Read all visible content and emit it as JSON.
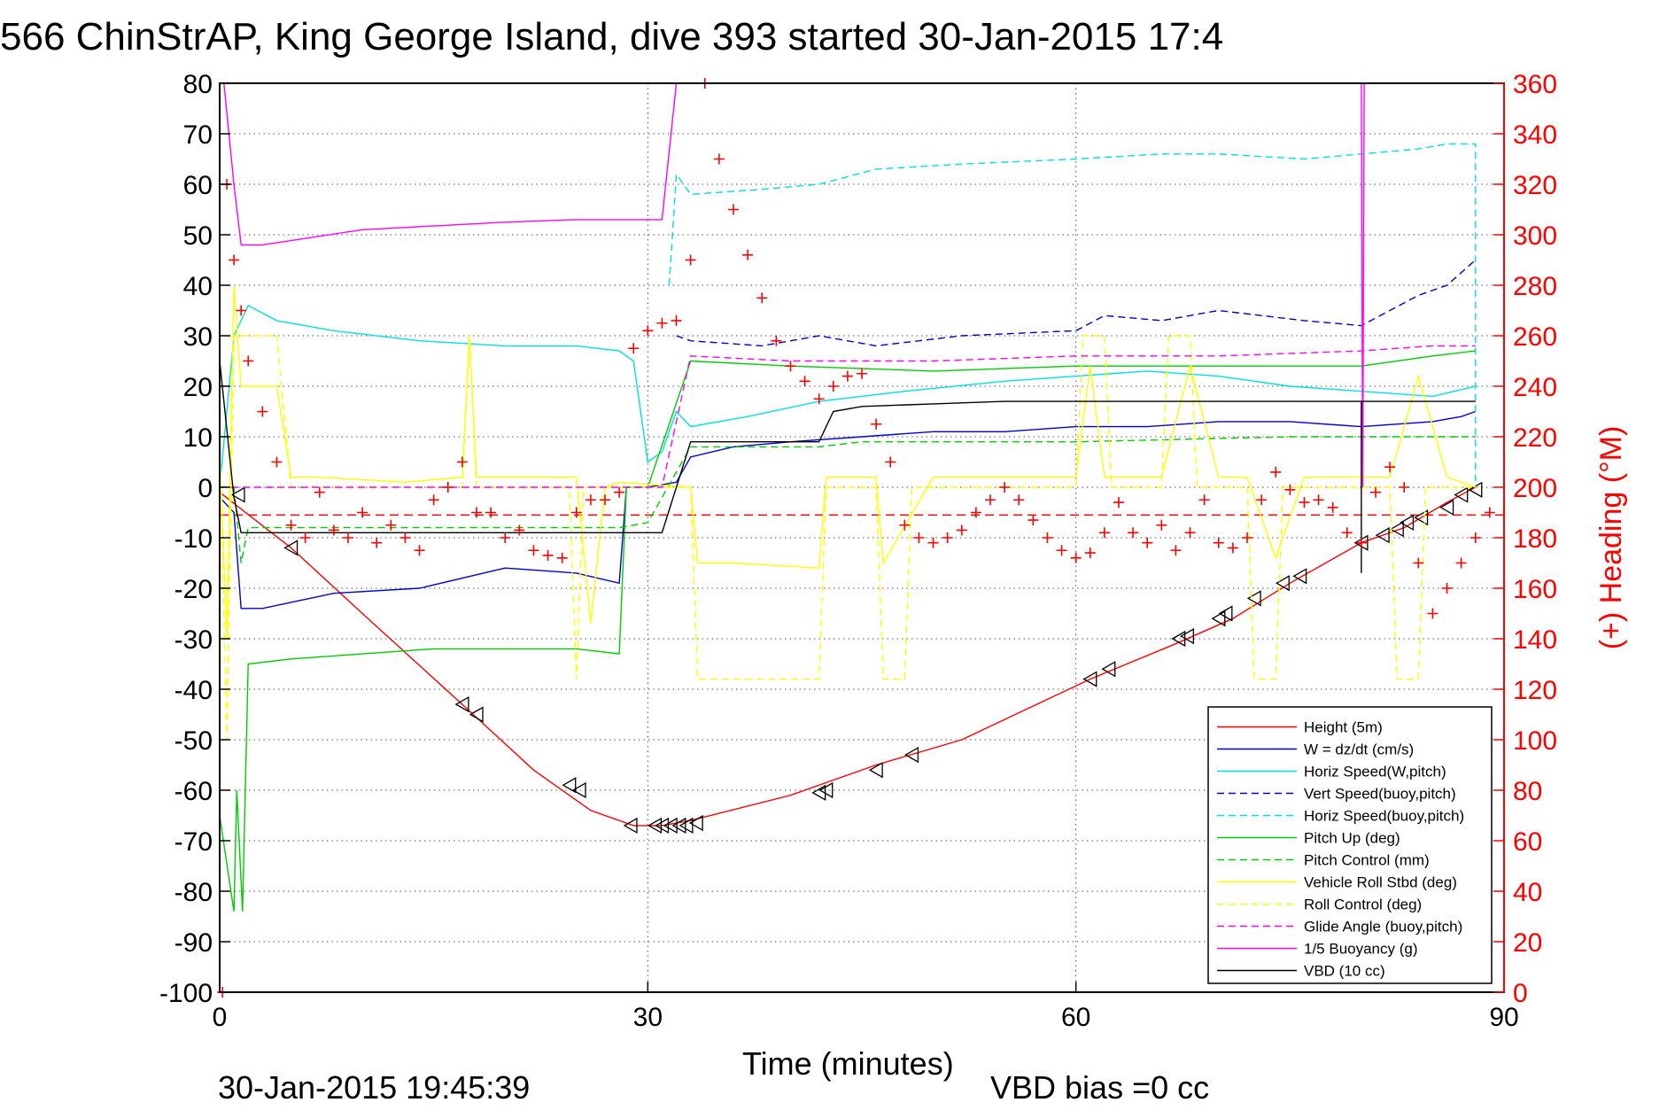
{
  "chart_data": {
    "type": "line",
    "title": "566 ChinStrAP, King George Island, dive 393 started 30-Jan-2015 17:4",
    "xlabel": "Time (minutes)",
    "ylabel_right": "(+) Heading (°M)",
    "footer_date": "30-Jan-2015 19:45:39",
    "footer_note": "VBD bias =0 cc",
    "xlim": [
      0,
      90
    ],
    "ylim": [
      -100,
      80
    ],
    "ylim_right": [
      0,
      360
    ],
    "x_ticks": [
      "0",
      "30",
      "60",
      "90"
    ],
    "y_ticks_left": [
      "80",
      "70",
      "60",
      "50",
      "40",
      "30",
      "20",
      "10",
      "0",
      "-10",
      "-20",
      "-30",
      "-40",
      "-50",
      "-60",
      "-70",
      "-80",
      "-90",
      "-100"
    ],
    "y_ticks_right": [
      "360",
      "340",
      "320",
      "300",
      "280",
      "260",
      "240",
      "220",
      "200",
      "180",
      "160",
      "140",
      "120",
      "100",
      "80",
      "60",
      "40",
      "20",
      "0"
    ],
    "grid": true,
    "legend_position": "bottom-right",
    "legend": [
      {
        "label": "Height (5m)",
        "color": "#ff0000",
        "style": "solid"
      },
      {
        "label": "W = dz/dt (cm/s)",
        "color": "#0000cc",
        "style": "solid"
      },
      {
        "label": "Horiz Speed(W,pitch)",
        "color": "#00e0e0",
        "style": "solid"
      },
      {
        "label": "Vert Speed(buoy,pitch)",
        "color": "#0000cc",
        "style": "dashed"
      },
      {
        "label": "Horiz Speed(buoy,pitch)",
        "color": "#00e0e0",
        "style": "dashed"
      },
      {
        "label": "Pitch Up (deg)",
        "color": "#00cc00",
        "style": "solid"
      },
      {
        "label": "Pitch Control (mm)",
        "color": "#00cc00",
        "style": "dashed"
      },
      {
        "label": "Vehicle Roll Stbd (deg)",
        "color": "#ffff00",
        "style": "solid"
      },
      {
        "label": "Roll Control (deg)",
        "color": "#ffff00",
        "style": "dashed"
      },
      {
        "label": "Glide Angle (buoy,pitch)",
        "color": "#ff00ff",
        "style": "dashed"
      },
      {
        "label": "1/5 Buoyancy (g)",
        "color": "#ff00ff",
        "style": "solid"
      },
      {
        "label": "VBD (10 cc)",
        "color": "#000000",
        "style": "solid"
      }
    ],
    "series": [
      {
        "name": "Height (5m)",
        "color": "#ff0000",
        "style": "solid",
        "axis": "left",
        "x": [
          0,
          5,
          10,
          17,
          22,
          26,
          29,
          31,
          33,
          40,
          46,
          52,
          55,
          61,
          67,
          71,
          75,
          80,
          83,
          86,
          88
        ],
        "y": [
          -1,
          -12,
          -25,
          -43,
          -56,
          -64,
          -67,
          -67,
          -66,
          -61,
          -55,
          -50,
          -46,
          -38,
          -31,
          -26,
          -19,
          -11,
          -8,
          -3,
          0
        ]
      },
      {
        "name": "Depth-marker triangles",
        "color": "#000000",
        "style": "marker",
        "axis": "left",
        "x": [
          1.3,
          5,
          17,
          18,
          24.5,
          25.2,
          28.8,
          30.5,
          31,
          31.6,
          32.2,
          32.7,
          33.4,
          42,
          42.5,
          46,
          48.5,
          61,
          62.3,
          67.2,
          67.8,
          70,
          70.5,
          72.5,
          74.5,
          75.7,
          80,
          81.5,
          82.5,
          83.2,
          84.2,
          86,
          87,
          88
        ],
        "y": [
          -1.5,
          -12,
          -43,
          -45,
          -59,
          -60,
          -67,
          -67,
          -67,
          -67,
          -67,
          -67,
          -66.5,
          -60.5,
          -60,
          -56,
          -53,
          -38,
          -36,
          -30,
          -29.5,
          -26,
          -25,
          -22,
          -19,
          -17.6,
          -11,
          -9.5,
          -8.3,
          -7,
          -6,
          -4,
          -1.5,
          -0.5
        ]
      },
      {
        "name": "W = dz/dt (cm/s)",
        "color": "#0000cc",
        "style": "solid",
        "axis": "left",
        "x": [
          0,
          1,
          1.5,
          3,
          8,
          14,
          20,
          25,
          28,
          28.5,
          30,
          32,
          33,
          36,
          40,
          45,
          50,
          55,
          60,
          65,
          70,
          75,
          80,
          85,
          87,
          88
        ],
        "y": [
          -2,
          -5,
          -24,
          -24,
          -21,
          -20,
          -16,
          -17,
          -19,
          0,
          0,
          1,
          6,
          8,
          9,
          10,
          11,
          11,
          12,
          12,
          13,
          13,
          12,
          13,
          14,
          15
        ]
      },
      {
        "name": "Horiz Speed(W,pitch)",
        "color": "#00e0e0",
        "style": "solid",
        "axis": "left",
        "x": [
          0,
          1,
          2,
          4,
          8,
          14,
          20,
          25,
          28,
          29,
          30,
          31,
          32,
          33,
          37,
          42,
          48,
          55,
          60,
          65,
          70,
          75,
          80,
          85,
          88
        ],
        "y": [
          0,
          30,
          36,
          33,
          31,
          29,
          28,
          28,
          27,
          25,
          5,
          7,
          15,
          12,
          14,
          17,
          19,
          21,
          22,
          23,
          22,
          20,
          19,
          18,
          20
        ]
      },
      {
        "name": "Vert Speed(buoy,pitch)",
        "color": "#0000cc",
        "style": "dashed",
        "axis": "left",
        "x": [
          32,
          33,
          38,
          42,
          46,
          52,
          60,
          62,
          66,
          70,
          76,
          80,
          84,
          86,
          88
        ],
        "y": [
          30,
          29,
          28,
          30,
          28,
          30,
          31,
          34,
          33,
          35,
          33,
          32,
          38,
          40,
          45
        ]
      },
      {
        "name": "Horiz Speed(buoy,pitch)",
        "color": "#00e0e0",
        "style": "dashed",
        "axis": "left",
        "x": [
          31.5,
          32,
          33,
          38,
          42,
          46,
          52,
          60,
          66,
          70,
          76,
          80,
          84,
          86,
          88,
          88
        ],
        "y": [
          40,
          62,
          58,
          59,
          60,
          63,
          64,
          65,
          66,
          66,
          65,
          66,
          67,
          68,
          68,
          0
        ]
      },
      {
        "name": "Pitch Up (deg)",
        "color": "#00cc00",
        "style": "solid",
        "axis": "left",
        "x": [
          0,
          1,
          1.2,
          1.6,
          2,
          5,
          10,
          15,
          20,
          25,
          28,
          28.5,
          30,
          33,
          40,
          50,
          60,
          70,
          80,
          85,
          88
        ],
        "y": [
          -65,
          -84,
          -60,
          -84,
          -35,
          -34,
          -33,
          -32,
          -32,
          -32,
          -33,
          0,
          0,
          25,
          24,
          23,
          24,
          24,
          24,
          26,
          27
        ]
      },
      {
        "name": "Pitch Control (mm)",
        "color": "#00cc00",
        "style": "dashed",
        "axis": "left",
        "x": [
          1,
          1.5,
          2,
          10,
          20,
          28,
          30,
          33,
          42,
          45,
          60,
          75,
          80,
          88
        ],
        "y": [
          0,
          -15,
          -8,
          -8,
          -8,
          -8,
          -7,
          8,
          8,
          9,
          9,
          10,
          10,
          10
        ]
      },
      {
        "name": "Vehicle Roll Stbd (deg)",
        "color": "#ffff00",
        "style": "solid",
        "axis": "left",
        "x": [
          0,
          0.5,
          1,
          1.5,
          2,
          4,
          5,
          7,
          13,
          17,
          17.5,
          18,
          25,
          26,
          27,
          28,
          33,
          33.5,
          36,
          42,
          42.5,
          46,
          46.5,
          50,
          60,
          61,
          62,
          66,
          68,
          70,
          72,
          74,
          76,
          82,
          84,
          86,
          88
        ],
        "y": [
          8,
          -30,
          40,
          20,
          20,
          20,
          2,
          2,
          1,
          2,
          30,
          2,
          2,
          -27,
          0,
          1,
          0,
          -15,
          -15,
          -16,
          2,
          2,
          -15,
          2,
          2,
          24,
          2,
          2,
          24,
          2,
          2,
          -14,
          2,
          2,
          22,
          2,
          0
        ]
      },
      {
        "name": "Roll Control (deg)",
        "color": "#ffff00",
        "style": "dashed",
        "axis": "left",
        "x": [
          0,
          0.5,
          1,
          2,
          4,
          5,
          17,
          17.5,
          18,
          24.5,
          25,
          25.5,
          28,
          33,
          33.5,
          42,
          42.5,
          46,
          46.5,
          48,
          48.5,
          60,
          60.5,
          62,
          62.5,
          66,
          66.5,
          68,
          68.5,
          72,
          72.5,
          74,
          74.5,
          82,
          82.5,
          84,
          84.5,
          88
        ],
        "y": [
          10,
          -50,
          30,
          30,
          30,
          0,
          0,
          30,
          0,
          0,
          -38,
          0,
          0,
          0,
          -38,
          -38,
          0,
          0,
          -38,
          -38,
          0,
          0,
          30,
          30,
          0,
          0,
          30,
          30,
          0,
          0,
          -38,
          -38,
          0,
          0,
          -38,
          -38,
          0,
          0
        ]
      },
      {
        "name": "Glide Angle (buoy,pitch)",
        "color": "#ff00ff",
        "style": "dashed",
        "axis": "left",
        "x": [
          0,
          28,
          31,
          33,
          40,
          50,
          60,
          70,
          80,
          85,
          88
        ],
        "y": [
          0,
          0,
          0,
          26,
          25,
          25,
          26,
          26,
          27,
          28,
          28
        ]
      },
      {
        "name": "1/5 Buoyancy (g)",
        "color": "#ff00ff",
        "style": "solid",
        "axis": "left",
        "x": [
          0.3,
          1,
          1.5,
          3,
          10,
          20,
          25,
          30,
          31,
          32,
          80,
          80.1,
          80.2
        ],
        "y": [
          80,
          60,
          48,
          48,
          51,
          52.5,
          53,
          53,
          53,
          80,
          80,
          0,
          80
        ]
      },
      {
        "name": "VBD (10 cc)",
        "color": "#000000",
        "style": "solid",
        "axis": "left",
        "x": [
          0,
          1,
          1.5,
          15,
          28,
          30,
          31,
          32,
          33,
          42,
          42.5,
          43,
          45,
          50,
          55,
          60,
          70,
          80,
          80,
          80,
          88
        ],
        "y": [
          25,
          -2,
          -9,
          -9,
          -9,
          -9,
          -9,
          0,
          9,
          9,
          12,
          15,
          16,
          16.5,
          17,
          17,
          17,
          17,
          -17,
          17,
          17
        ]
      },
      {
        "name": "Heading (+)",
        "color": "#ff0000",
        "style": "marker",
        "axis": "right",
        "x": [
          0.2,
          0.5,
          1,
          1.5,
          2,
          3,
          4,
          5,
          6,
          7,
          8,
          9,
          10,
          11,
          12,
          13,
          14,
          15,
          16,
          17,
          18,
          19,
          20,
          21,
          22,
          23,
          24,
          25,
          26,
          27,
          28,
          29,
          30,
          31,
          32,
          33,
          34,
          35,
          36,
          37,
          38,
          39,
          40,
          41,
          42,
          43,
          44,
          45,
          46,
          47,
          48,
          49,
          50,
          51,
          52,
          53,
          54,
          55,
          56,
          57,
          58,
          59,
          60,
          61,
          62,
          63,
          64,
          65,
          66,
          67,
          68,
          69,
          70,
          71,
          72,
          73,
          74,
          75,
          76,
          77,
          78,
          79,
          80,
          81,
          82,
          83,
          84,
          85,
          86,
          87,
          88,
          89
        ],
        "y": [
          0,
          320,
          290,
          270,
          250,
          230,
          210,
          185,
          180,
          198,
          183,
          180,
          190,
          178,
          185,
          180,
          175,
          195,
          200,
          210,
          190,
          190,
          180,
          183,
          175,
          173,
          172,
          190,
          195,
          195,
          198,
          255,
          262,
          265,
          266,
          290,
          360,
          330,
          310,
          292,
          275,
          258,
          248,
          242,
          235,
          240,
          244,
          245,
          225,
          210,
          185,
          180,
          178,
          180,
          183,
          190,
          195,
          200,
          195,
          187,
          180,
          175,
          172,
          174,
          182,
          194,
          182,
          178,
          185,
          175,
          182,
          195,
          178,
          176,
          180,
          195,
          206,
          199,
          194,
          195,
          192,
          182,
          178,
          198,
          208,
          200,
          170,
          150,
          160,
          170,
          180,
          190
        ]
      }
    ]
  }
}
